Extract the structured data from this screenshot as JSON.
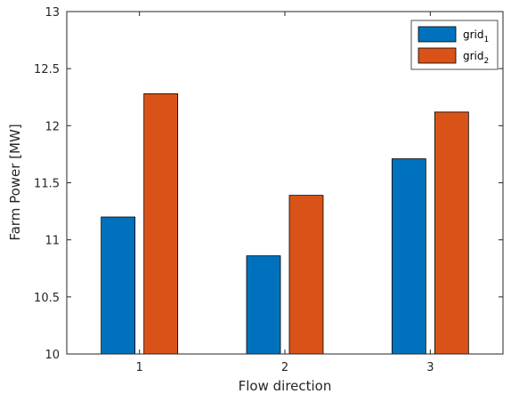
{
  "chart_data": {
    "type": "bar",
    "categories": [
      "1",
      "2",
      "3"
    ],
    "series": [
      {
        "name": "grid",
        "subscript": "1",
        "values": [
          11.2,
          10.86,
          11.71
        ],
        "color": "#0072BD"
      },
      {
        "name": "grid",
        "subscript": "2",
        "values": [
          12.28,
          11.39,
          12.12
        ],
        "color": "#D95319"
      }
    ],
    "xlabel": "Flow direction",
    "ylabel": "Farm Power [MW]",
    "ylim": [
      10,
      13
    ],
    "yticks": [
      "10",
      "10.5",
      "11",
      "11.5",
      "12",
      "12.5",
      "13"
    ],
    "grid": false,
    "legend_position": "top-right",
    "axis_color": "#262626",
    "bar_edge_color": "#000000"
  }
}
